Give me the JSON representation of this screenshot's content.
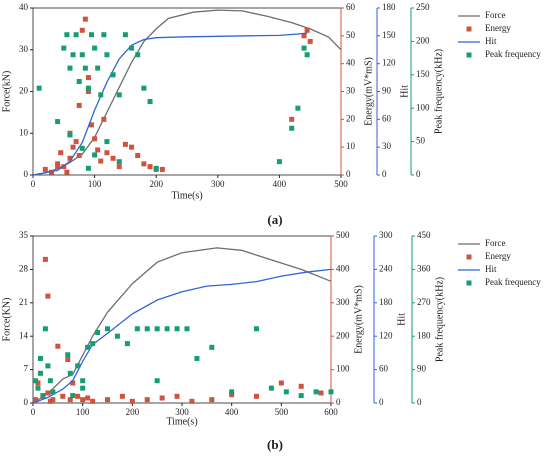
{
  "chart_data": [
    {
      "type": "combo",
      "label": "(a)",
      "xlabel": "Time(s)",
      "ylabel": "Force(kN)",
      "y2label": "Energy(mV*mS)",
      "y3label": "Hit",
      "y4label": "Peak frequency(kHz)",
      "xlim": [
        0,
        500
      ],
      "xticks": [
        0,
        100,
        200,
        300,
        400,
        500
      ],
      "ylim": [
        0,
        40
      ],
      "yticks": [
        0,
        10,
        20,
        30,
        40
      ],
      "y2lim": [
        0,
        60
      ],
      "y2ticks": [
        0,
        10,
        20,
        30,
        40,
        50,
        60
      ],
      "y3lim": [
        0,
        180
      ],
      "y3ticks": [
        0,
        30,
        60,
        90,
        120,
        150,
        180
      ],
      "y4lim": [
        0,
        250
      ],
      "y4ticks": [
        0,
        50,
        100,
        150,
        200,
        250
      ],
      "series": [
        {
          "name": "Force",
          "type": "line",
          "axis": "y",
          "color": "#6e6e6e",
          "x": [
            0,
            20,
            40,
            60,
            80,
            100,
            120,
            140,
            160,
            180,
            200,
            220,
            260,
            300,
            340,
            380,
            420,
            450,
            480,
            500
          ],
          "values": [
            0,
            0.5,
            1.5,
            3,
            5,
            9,
            15,
            21,
            27,
            32,
            35,
            37.5,
            39,
            39.5,
            39.3,
            38,
            36.5,
            35,
            33,
            30
          ]
        },
        {
          "name": "Energy",
          "type": "scatter",
          "axis": "y2",
          "color": "#d0533f",
          "x": [
            20,
            30,
            40,
            45,
            50,
            55,
            60,
            65,
            70,
            75,
            80,
            85,
            90,
            95,
            100,
            105,
            110,
            115,
            120,
            130,
            140,
            150,
            160,
            170,
            180,
            190,
            200,
            210,
            40,
            60,
            75,
            90,
            440,
            445,
            450,
            420
          ],
          "values": [
            2,
            1,
            4,
            8,
            3,
            1,
            6,
            10,
            12,
            7,
            52,
            56,
            35,
            18,
            13,
            9,
            5,
            20,
            8,
            6,
            3,
            11,
            10,
            7,
            4,
            3,
            2,
            2,
            3,
            15,
            25,
            30,
            50,
            52,
            48,
            20
          ]
        },
        {
          "name": "Hit",
          "type": "line",
          "axis": "y3",
          "color": "#2f66d6",
          "x": [
            0,
            40,
            60,
            80,
            100,
            120,
            140,
            160,
            180,
            200,
            250,
            300,
            350,
            400,
            430,
            445
          ],
          "values": [
            0,
            5,
            15,
            35,
            70,
            100,
            125,
            140,
            146,
            148,
            149,
            149.5,
            150,
            150.5,
            152,
            153
          ]
        },
        {
          "name": "Peak frequency",
          "type": "scatter",
          "axis": "y4",
          "color": "#159e6e",
          "x": [
            10,
            40,
            50,
            55,
            60,
            65,
            70,
            75,
            80,
            85,
            90,
            95,
            100,
            105,
            110,
            115,
            120,
            130,
            140,
            150,
            160,
            170,
            180,
            190,
            200,
            60,
            80,
            100,
            120,
            140,
            400,
            420,
            430,
            440,
            445,
            90
          ],
          "values": [
            130,
            80,
            190,
            210,
            160,
            180,
            210,
            140,
            180,
            160,
            130,
            210,
            190,
            160,
            120,
            210,
            180,
            150,
            120,
            210,
            190,
            180,
            130,
            110,
            10,
            60,
            40,
            30,
            50,
            20,
            20,
            70,
            100,
            190,
            180,
            10
          ]
        }
      ]
    },
    {
      "type": "combo",
      "label": "(b)",
      "xlabel": "Time(s)",
      "ylabel": "Force(KN)",
      "y2label": "Energy(mV*mS)",
      "y3label": "Hit",
      "y4label": "Peak frequency(kHz)",
      "xlim": [
        0,
        600
      ],
      "xticks": [
        0,
        100,
        200,
        300,
        400,
        500,
        600
      ],
      "ylim": [
        0,
        35
      ],
      "yticks": [
        0,
        7,
        14,
        21,
        28,
        35
      ],
      "y2lim": [
        0,
        500
      ],
      "y2ticks": [
        0,
        100,
        200,
        300,
        400,
        500
      ],
      "y3lim": [
        0,
        300
      ],
      "y3ticks": [
        0,
        60,
        120,
        180,
        240,
        300
      ],
      "y4lim": [
        0,
        450
      ],
      "y4ticks": [
        0,
        90,
        180,
        270,
        360,
        450
      ],
      "series": [
        {
          "name": "Force",
          "type": "line",
          "axis": "y",
          "color": "#6e6e6e",
          "x": [
            0,
            30,
            60,
            80,
            100,
            120,
            150,
            200,
            250,
            300,
            370,
            420,
            480,
            540,
            600
          ],
          "values": [
            0,
            2,
            5,
            6,
            10,
            14,
            19,
            25,
            29.5,
            31.5,
            32.5,
            32,
            30,
            28,
            25.5
          ]
        },
        {
          "name": "Energy",
          "type": "scatter",
          "axis": "y2",
          "color": "#d0533f",
          "x": [
            5,
            10,
            20,
            25,
            30,
            35,
            40,
            50,
            60,
            70,
            80,
            90,
            100,
            110,
            120,
            150,
            180,
            200,
            230,
            260,
            290,
            320,
            360,
            400,
            450,
            500,
            540,
            580,
            30,
            75
          ],
          "values": [
            10,
            60,
            20,
            430,
            30,
            5,
            10,
            170,
            20,
            130,
            60,
            20,
            10,
            15,
            5,
            10,
            20,
            5,
            10,
            15,
            20,
            5,
            10,
            25,
            20,
            60,
            50,
            30,
            320,
            10
          ]
        },
        {
          "name": "Hit",
          "type": "line",
          "axis": "y3",
          "color": "#2f66d6",
          "x": [
            0,
            30,
            60,
            80,
            100,
            120,
            150,
            200,
            250,
            300,
            350,
            400,
            450,
            500,
            550,
            600
          ],
          "values": [
            0,
            10,
            25,
            40,
            75,
            105,
            125,
            160,
            185,
            200,
            210,
            213,
            218,
            228,
            235,
            240
          ]
        },
        {
          "name": "Peak frequency",
          "type": "scatter",
          "axis": "y4",
          "color": "#159e6e",
          "x": [
            5,
            10,
            15,
            20,
            25,
            30,
            35,
            40,
            70,
            75,
            80,
            90,
            100,
            110,
            120,
            130,
            150,
            170,
            190,
            210,
            230,
            250,
            270,
            290,
            310,
            330,
            360,
            400,
            450,
            480,
            510,
            540,
            570,
            600,
            15,
            100,
            250
          ],
          "values": [
            60,
            40,
            80,
            20,
            200,
            100,
            60,
            30,
            130,
            80,
            20,
            100,
            60,
            150,
            160,
            190,
            200,
            180,
            160,
            200,
            200,
            200,
            200,
            200,
            200,
            120,
            150,
            30,
            200,
            40,
            30,
            20,
            30,
            30,
            120,
            40,
            60
          ]
        }
      ]
    }
  ]
}
